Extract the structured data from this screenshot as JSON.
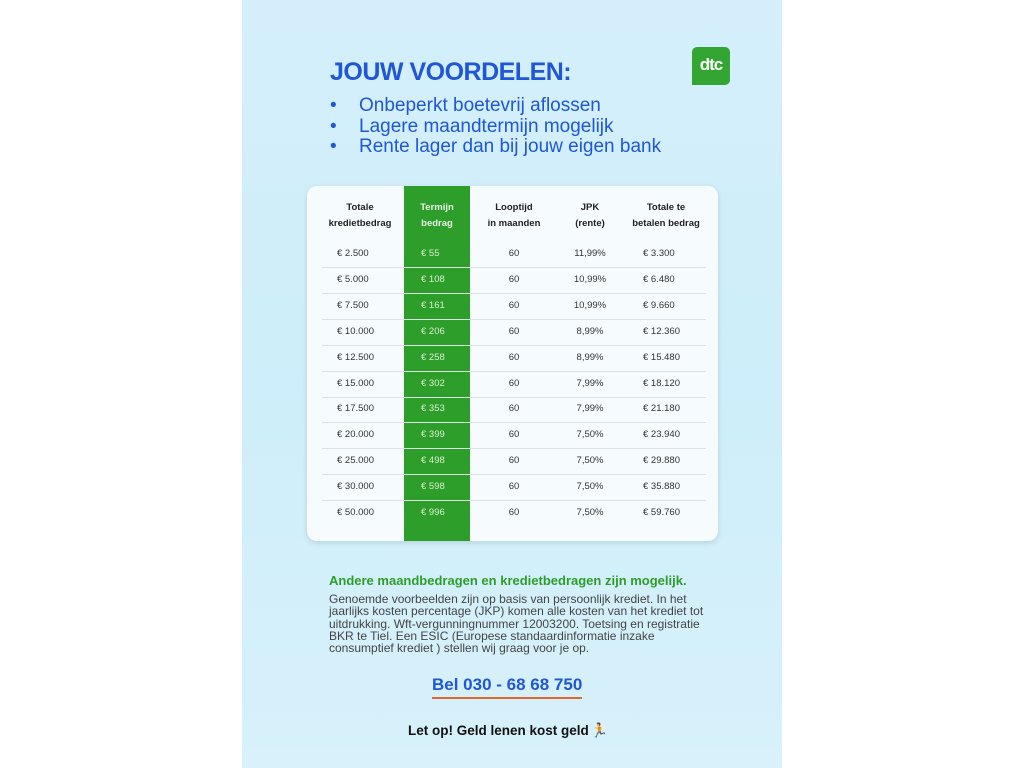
{
  "title": "JOUW VOORDELEN:",
  "logo": "dtc",
  "benefits": [
    "Onbeperkt boetevrij aflossen",
    "Lagere maandtermijn mogelijk",
    "Rente lager dan bij jouw eigen bank"
  ],
  "table": {
    "headers": [
      [
        "Totale",
        "kredietbedrag"
      ],
      [
        "Termijn",
        "bedrag"
      ],
      [
        "Looptijd",
        "in maanden"
      ],
      [
        "JPK",
        "(rente)"
      ],
      [
        "Totale te",
        "betalen bedrag"
      ]
    ],
    "rows": [
      [
        "€ 2.500",
        "€ 55",
        "60",
        "11,99%",
        "€ 3.300"
      ],
      [
        "€ 5.000",
        "€ 108",
        "60",
        "10,99%",
        "€ 6.480"
      ],
      [
        "€ 7.500",
        "€ 161",
        "60",
        "10,99%",
        "€ 9.660"
      ],
      [
        "€ 10.000",
        "€ 206",
        "60",
        "8,99%",
        "€ 12.360"
      ],
      [
        "€ 12.500",
        "€ 258",
        "60",
        "8,99%",
        "€ 15.480"
      ],
      [
        "€ 15.000",
        "€ 302",
        "60",
        "7,99%",
        "€ 18.120"
      ],
      [
        "€ 17.500",
        "€ 353",
        "60",
        "7,99%",
        "€ 21.180"
      ],
      [
        "€ 20.000",
        "€ 399",
        "60",
        "7,50%",
        "€ 23.940"
      ],
      [
        "€ 25.000",
        "€ 498",
        "60",
        "7,50%",
        "€ 29.880"
      ],
      [
        "€ 30.000",
        "€ 598",
        "60",
        "7,50%",
        "€ 35.880"
      ],
      [
        "€ 50.000",
        "€ 996",
        "60",
        "7,50%",
        "€ 59.760"
      ]
    ],
    "highlight_color": "#2e9e2a"
  },
  "note_title": "Andere maandbedragen en kredietbedragen zijn mogelijk.",
  "note": "Genoemde voorbeelden zijn op basis van persoonlijk krediet. In het jaarlijks kosten percentage (JKP) komen alle kosten van het krediet tot uitdrukking. Wft-vergunningnummer 12003200. Toetsing en registratie BKR te Tiel. Een ESIC (Europese standaardinformatie inzake consumptief krediet ) stellen wij graag voor je op.",
  "phone": "Bel 030 - 68 68 750",
  "warning": "Let op! Geld lenen kost geld",
  "warning_icon": "running-man-icon"
}
